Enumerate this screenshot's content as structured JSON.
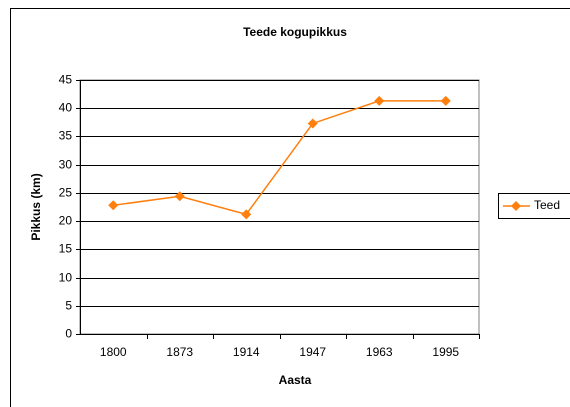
{
  "chart_data": {
    "type": "line",
    "title": "Teede kogupikkus",
    "x_label": "Aasta",
    "y_label": "Pikkus (km)",
    "categories": [
      "1800",
      "1873",
      "1914",
      "1947",
      "1963",
      "1995"
    ],
    "series": [
      {
        "name": "Teed",
        "color": "#ff7f0e",
        "values": [
          22.8,
          24.4,
          21.2,
          37.3,
          41.3,
          41.3
        ]
      }
    ],
    "ylim": [
      0,
      45
    ],
    "yticks": [
      0,
      5,
      10,
      15,
      20,
      25,
      30,
      35,
      40,
      45
    ],
    "grid": true,
    "legend": "right"
  }
}
